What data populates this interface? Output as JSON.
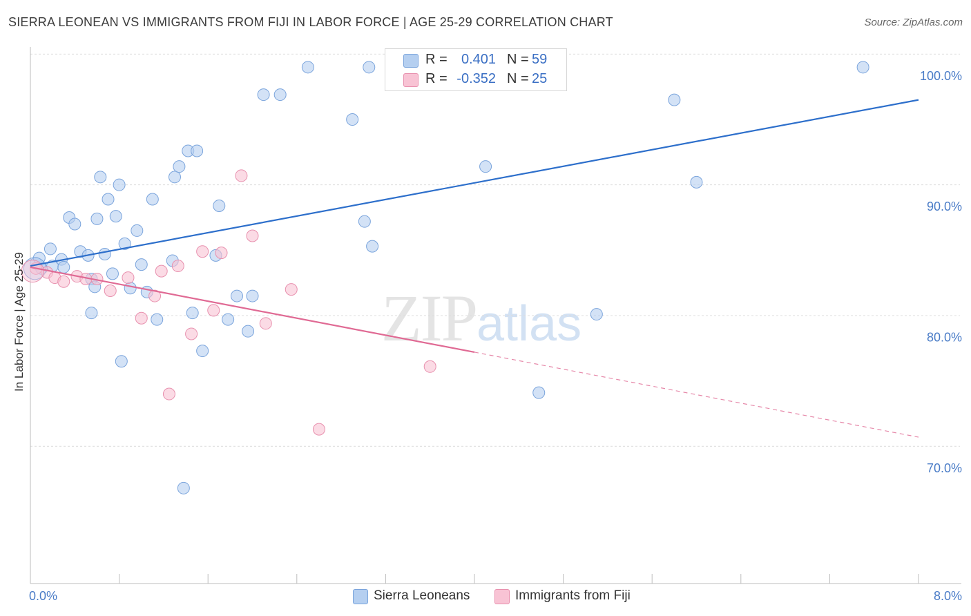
{
  "header": {
    "title": "SIERRA LEONEAN VS IMMIGRANTS FROM FIJI IN LABOR FORCE | AGE 25-29 CORRELATION CHART",
    "source": "Source: ZipAtlas.com"
  },
  "watermark": {
    "zip": "ZIP",
    "atlas": "atlas"
  },
  "legend_top": {
    "rows": [
      {
        "r_label": "R =",
        "r_value": "0.401",
        "n_label": "N =",
        "n_value": "59"
      },
      {
        "r_label": "R =",
        "r_value": "-0.352",
        "n_label": "N =",
        "n_value": "25"
      }
    ]
  },
  "legend_bottom": {
    "items": [
      {
        "label": "Sierra Leoneans"
      },
      {
        "label": "Immigrants from Fiji"
      }
    ]
  },
  "colors": {
    "blue_fill": "#b5cff0",
    "blue_stroke": "#7aa4dc",
    "blue_line": "#2d6fcb",
    "pink_fill": "#f8c3d4",
    "pink_stroke": "#e890ae",
    "pink_line": "#e06a94",
    "tick_text": "#4a7cc7",
    "grid": "#dcdcdc"
  },
  "chart_data": {
    "type": "scatter",
    "title": "SIERRA LEONEAN VS IMMIGRANTS FROM FIJI IN LABOR FORCE | AGE 25-29 CORRELATION CHART",
    "xlabel": "",
    "ylabel": "In Labor Force | Age 25-29",
    "xlim": [
      0,
      8
    ],
    "ylim": [
      60.5,
      102.5
    ],
    "x_tick_labels": [
      {
        "value": 0,
        "label": "0.0%"
      },
      {
        "value": 8,
        "label": "8.0%"
      }
    ],
    "y_tick_labels": [
      {
        "value": 100,
        "label": "100.0%"
      },
      {
        "value": 90,
        "label": "90.0%"
      },
      {
        "value": 80,
        "label": "80.0%"
      },
      {
        "value": 70,
        "label": "70.0%"
      }
    ],
    "x_minor_ticks": [
      0,
      0.8,
      1.6,
      2.4,
      3.2,
      4.0,
      4.8,
      5.6,
      6.4,
      7.2,
      8.0
    ],
    "y_gridlines": [
      101,
      91,
      81,
      71
    ],
    "grid": true,
    "legend_position": "top-center",
    "series": [
      {
        "name": "Sierra Leoneans",
        "color": "blue",
        "points": [
          [
            0.05,
            85.0
          ],
          [
            0.1,
            84.6
          ],
          [
            0.08,
            85.4
          ],
          [
            0.18,
            86.1
          ],
          [
            0.2,
            84.8
          ],
          [
            0.28,
            85.3
          ],
          [
            0.3,
            84.7
          ],
          [
            0.35,
            88.5
          ],
          [
            0.4,
            88.0
          ],
          [
            0.45,
            85.9
          ],
          [
            0.52,
            85.6
          ],
          [
            0.55,
            83.8
          ],
          [
            0.55,
            81.2
          ],
          [
            0.58,
            83.2
          ],
          [
            0.6,
            88.4
          ],
          [
            0.63,
            91.6
          ],
          [
            0.67,
            85.7
          ],
          [
            0.7,
            89.9
          ],
          [
            0.74,
            84.2
          ],
          [
            0.77,
            88.6
          ],
          [
            0.8,
            91.0
          ],
          [
            0.82,
            77.5
          ],
          [
            0.85,
            86.5
          ],
          [
            0.9,
            83.1
          ],
          [
            0.96,
            87.5
          ],
          [
            1.0,
            84.9
          ],
          [
            1.05,
            82.8
          ],
          [
            1.1,
            89.9
          ],
          [
            1.14,
            80.7
          ],
          [
            1.28,
            85.2
          ],
          [
            1.3,
            91.6
          ],
          [
            1.34,
            92.4
          ],
          [
            1.38,
            67.8
          ],
          [
            1.42,
            93.6
          ],
          [
            1.46,
            81.2
          ],
          [
            1.5,
            93.6
          ],
          [
            1.55,
            78.3
          ],
          [
            1.67,
            85.6
          ],
          [
            1.7,
            89.4
          ],
          [
            1.78,
            80.7
          ],
          [
            1.86,
            82.5
          ],
          [
            1.96,
            79.8
          ],
          [
            2.0,
            82.5
          ],
          [
            2.1,
            97.9
          ],
          [
            2.25,
            97.9
          ],
          [
            2.5,
            100.0
          ],
          [
            2.9,
            96.0
          ],
          [
            3.01,
            88.2
          ],
          [
            3.05,
            100.0
          ],
          [
            3.08,
            86.3
          ],
          [
            4.1,
            92.4
          ],
          [
            4.3,
            100.0
          ],
          [
            4.58,
            75.1
          ],
          [
            4.62,
            100.0
          ],
          [
            5.1,
            81.1
          ],
          [
            5.8,
            97.5
          ],
          [
            6.0,
            91.2
          ],
          [
            7.5,
            100.0
          ],
          [
            0.04,
            84.6
          ]
        ],
        "trend": {
          "x": [
            0,
            8
          ],
          "y": [
            84.8,
            97.5
          ]
        }
      },
      {
        "name": "Immigrants from Fiji",
        "color": "pink",
        "points": [
          [
            0.05,
            84.6
          ],
          [
            0.15,
            84.3
          ],
          [
            0.22,
            83.9
          ],
          [
            0.3,
            83.6
          ],
          [
            0.42,
            84.0
          ],
          [
            0.5,
            83.8
          ],
          [
            0.6,
            83.8
          ],
          [
            0.72,
            82.9
          ],
          [
            0.88,
            83.9
          ],
          [
            1.0,
            80.8
          ],
          [
            1.12,
            82.5
          ],
          [
            1.18,
            84.4
          ],
          [
            1.25,
            75.0
          ],
          [
            1.33,
            84.8
          ],
          [
            1.45,
            79.6
          ],
          [
            1.55,
            85.9
          ],
          [
            1.65,
            81.4
          ],
          [
            1.72,
            85.8
          ],
          [
            1.9,
            91.7
          ],
          [
            2.0,
            87.1
          ],
          [
            2.12,
            80.4
          ],
          [
            2.35,
            83.0
          ],
          [
            2.6,
            72.3
          ],
          [
            3.6,
            77.1
          ],
          [
            0.02,
            84.4
          ]
        ],
        "trend": {
          "x": [
            0,
            4.0
          ],
          "y": [
            84.7,
            78.2
          ]
        },
        "trend_extension": {
          "x": [
            4.0,
            8.0
          ],
          "y": [
            78.2,
            71.7
          ]
        }
      }
    ]
  }
}
